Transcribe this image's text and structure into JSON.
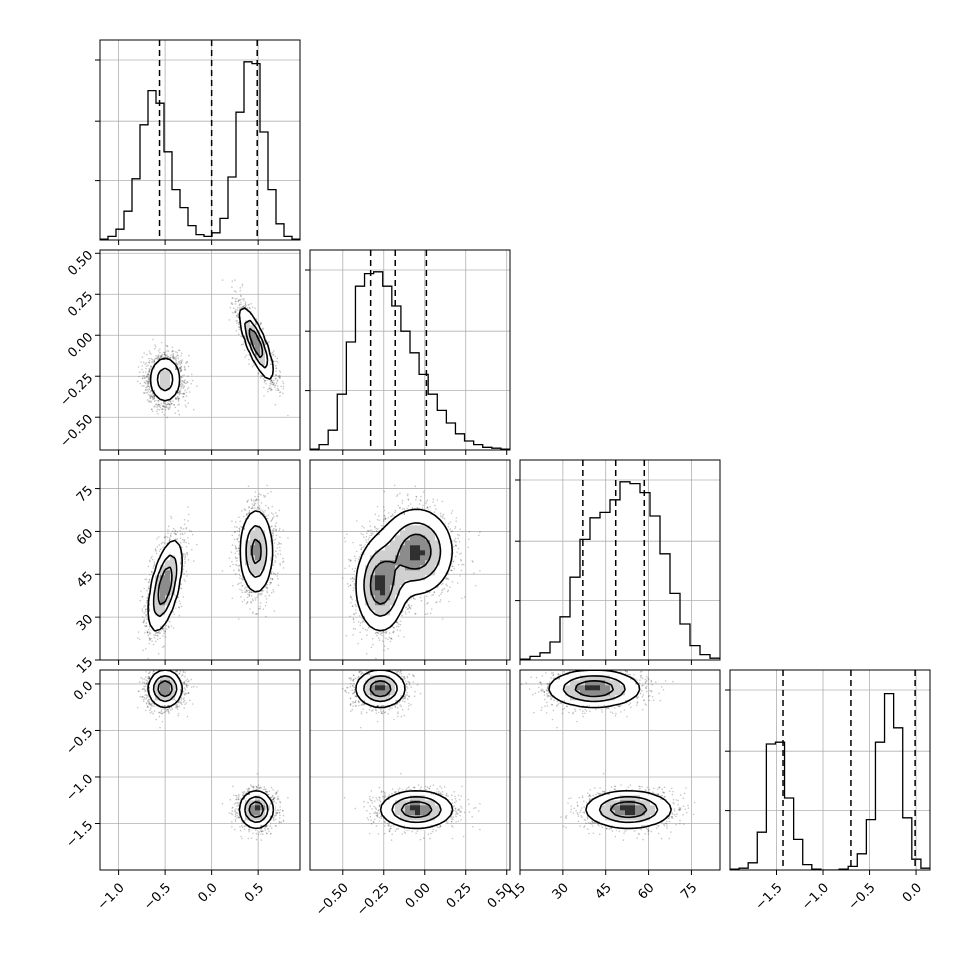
{
  "chart_data": {
    "type": "corner",
    "grid": true,
    "parameters": [
      {
        "range": [
          -1.2,
          0.95
        ],
        "ticks": [
          -1.0,
          -0.5,
          0.0,
          0.5
        ],
        "tick_labels": [
          "−1.0",
          "−0.5",
          "0.0",
          "0.5"
        ],
        "quantiles": [
          -0.56,
          0.0,
          0.49
        ],
        "hist": [
          0.005,
          0.02,
          0.06,
          0.16,
          0.34,
          0.64,
          0.83,
          0.76,
          0.49,
          0.28,
          0.18,
          0.08,
          0.03,
          0.02,
          0.04,
          0.12,
          0.35,
          0.71,
          0.99,
          0.98,
          0.6,
          0.28,
          0.09,
          0.02,
          0.005
        ]
      },
      {
        "range": [
          -0.7,
          0.52
        ],
        "ticks": [
          -0.5,
          -0.25,
          0.0,
          0.25,
          0.5
        ],
        "tick_labels": [
          "−0.50",
          "−0.25",
          "0.00",
          "0.25",
          "0.50"
        ],
        "quantiles": [
          -0.33,
          -0.18,
          0.01
        ],
        "hist": [
          0.005,
          0.03,
          0.11,
          0.31,
          0.6,
          0.91,
          0.98,
          0.99,
          0.91,
          0.8,
          0.66,
          0.54,
          0.42,
          0.31,
          0.22,
          0.15,
          0.09,
          0.05,
          0.03,
          0.015,
          0.01,
          0.005
        ]
      },
      {
        "range": [
          15,
          85
        ],
        "ticks": [
          15,
          30,
          45,
          60,
          75
        ],
        "tick_labels": [
          "15",
          "30",
          "45",
          "60",
          "75"
        ],
        "quantiles": [
          37,
          48.5,
          58.5
        ],
        "hist": [
          0.005,
          0.02,
          0.04,
          0.1,
          0.24,
          0.46,
          0.67,
          0.79,
          0.82,
          0.89,
          0.99,
          0.98,
          0.93,
          0.8,
          0.59,
          0.37,
          0.2,
          0.08,
          0.03,
          0.01
        ]
      },
      {
        "range": [
          -2.0,
          0.15
        ],
        "ticks": [
          -1.5,
          -1.0,
          -0.5,
          0.0
        ],
        "tick_labels": [
          "−1.5",
          "−1.0",
          "−0.5",
          "0.0"
        ],
        "quantiles": [
          -1.43,
          -0.7,
          -0.01
        ],
        "hist": [
          0.005,
          0.01,
          0.04,
          0.21,
          0.7,
          0.71,
          0.4,
          0.17,
          0.03,
          0.005,
          0.0,
          0.0,
          0.005,
          0.02,
          0.09,
          0.28,
          0.71,
          0.98,
          0.79,
          0.29,
          0.06,
          0.01
        ]
      }
    ],
    "modes": [
      {
        "weight": 0.5,
        "mean": [
          -0.5,
          -0.27,
          41,
          -0.05
        ],
        "std": [
          0.09,
          0.075,
          8.0,
          0.1
        ]
      },
      {
        "weight": 0.5,
        "mean": [
          0.48,
          -0.05,
          53,
          -1.35
        ],
        "std": [
          0.09,
          0.11,
          7.5,
          0.1
        ]
      }
    ],
    "mode_correlations": [
      [
        [
          1,
          0,
          0.55,
          0
        ],
        [
          0,
          1,
          0,
          0
        ],
        [
          0.55,
          0,
          1,
          0
        ],
        [
          0,
          0,
          0,
          1
        ]
      ],
      [
        [
          1,
          -0.8,
          0,
          0
        ],
        [
          -0.8,
          1,
          0,
          0
        ],
        [
          0,
          0,
          1,
          0
        ],
        [
          0,
          0,
          0,
          1
        ]
      ]
    ]
  }
}
